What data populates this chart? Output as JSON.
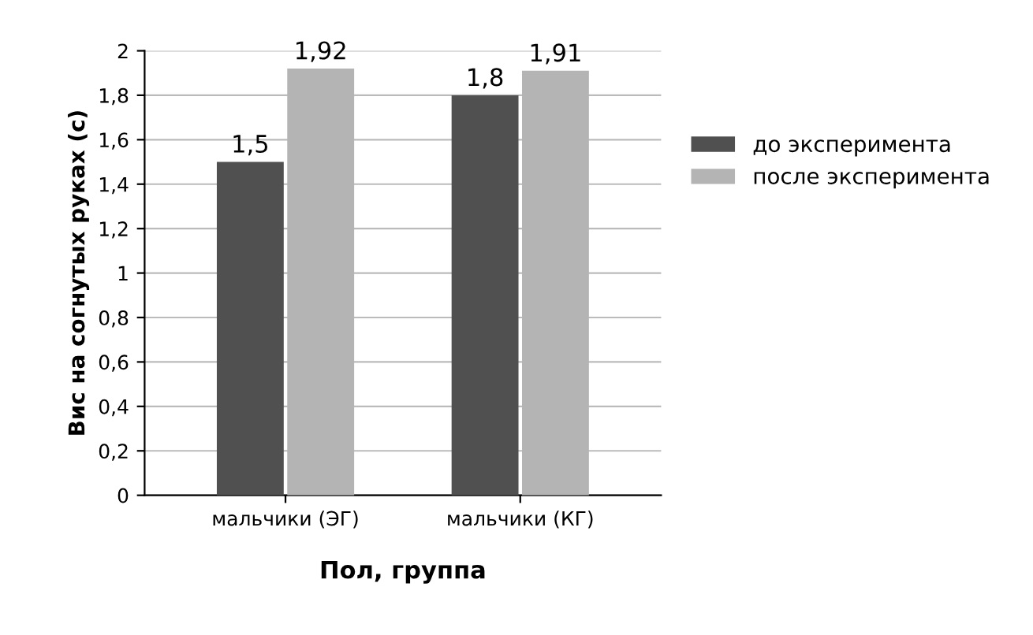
{
  "chart_data": {
    "type": "bar",
    "xlabel": "Пол, группа",
    "ylabel": "Вис на согнутых руках (с)",
    "categories": [
      "мальчики (ЭГ)",
      "мальчики (КГ)"
    ],
    "series": [
      {
        "name": "до эксперимента",
        "color": "#505050",
        "values": [
          1.5,
          1.8
        ],
        "value_labels": [
          "1,5",
          "1,8"
        ]
      },
      {
        "name": "после эксперимента",
        "color": "#b4b4b4",
        "values": [
          1.92,
          1.91
        ],
        "value_labels": [
          "1,92",
          "1,91"
        ]
      }
    ],
    "ylim": [
      0,
      2
    ],
    "yticks": [
      0,
      {
        "value": 0.2,
        "label": "0,2"
      },
      {
        "value": 0.4,
        "label": "0,4"
      },
      {
        "value": 0.6,
        "label": "0,6"
      },
      {
        "value": 0.8,
        "label": "0,8"
      },
      1,
      {
        "value": 1.2,
        "label": "1,2"
      },
      {
        "value": 1.4,
        "label": "1,4"
      },
      {
        "value": 1.6,
        "label": "1,6"
      },
      {
        "value": 1.8,
        "label": "1,8"
      },
      2
    ],
    "grid": "y",
    "legend": "right"
  }
}
